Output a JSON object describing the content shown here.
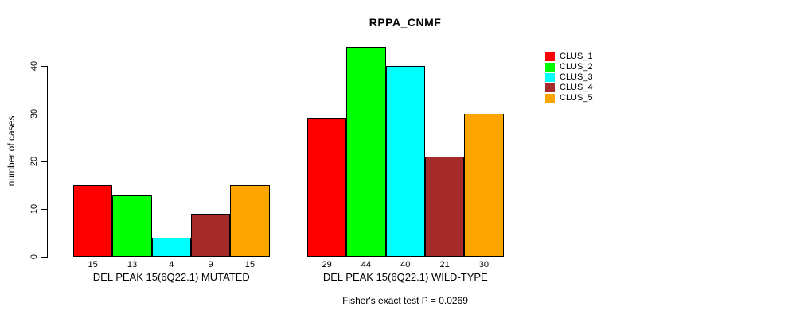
{
  "title": "RPPA_CNMF",
  "chart_data": {
    "type": "bar",
    "title": "RPPA_CNMF",
    "ylabel": "number of cases",
    "xlabel": "",
    "ylim": [
      0,
      44
    ],
    "yticks": [
      0,
      10,
      20,
      30,
      40
    ],
    "grid": false,
    "legend_position": "top-right",
    "bar_value_labels": true,
    "categories": [
      "DEL PEAK 15(6Q22.1) MUTATED",
      "DEL PEAK 15(6Q22.1) WILD-TYPE"
    ],
    "series": [
      {
        "name": "CLUS_1",
        "color": "#ff0000",
        "values": [
          15,
          29
        ]
      },
      {
        "name": "CLUS_2",
        "color": "#00ff00",
        "values": [
          13,
          44
        ]
      },
      {
        "name": "CLUS_3",
        "color": "#00ffff",
        "values": [
          4,
          40
        ]
      },
      {
        "name": "CLUS_4",
        "color": "#a52a2a",
        "values": [
          9,
          21
        ]
      },
      {
        "name": "CLUS_5",
        "color": "#ffa500",
        "values": [
          15,
          30
        ]
      }
    ],
    "footnote": "Fisher's exact test P = 0.0269",
    "colors": {
      "background": "#ffffff",
      "axis": "#000000",
      "bar_border": "#000000",
      "text": "#000000"
    }
  }
}
